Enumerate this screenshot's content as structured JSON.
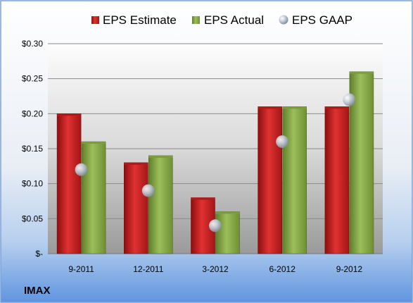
{
  "ticker": "IMAX",
  "colors": {
    "estimate": "#cc1f1f",
    "actual": "#8cb04a",
    "gaap": "#b8c4d0"
  },
  "chart_data": {
    "type": "bar",
    "categories": [
      "9-2011",
      "12-2011",
      "3-2012",
      "6-2012",
      "9-2012"
    ],
    "series": [
      {
        "name": "EPS Estimate",
        "kind": "bar",
        "values": [
          0.2,
          0.13,
          0.08,
          0.21,
          0.21
        ]
      },
      {
        "name": "EPS Actual",
        "kind": "bar",
        "values": [
          0.16,
          0.14,
          0.06,
          0.21,
          0.26
        ]
      },
      {
        "name": "EPS GAAP",
        "kind": "marker",
        "values": [
          0.12,
          0.09,
          0.04,
          0.16,
          0.22
        ]
      }
    ],
    "ylim": [
      0,
      0.3
    ],
    "yticks": [
      {
        "value": 0.0,
        "label": "$-"
      },
      {
        "value": 0.05,
        "label": "$0.05"
      },
      {
        "value": 0.1,
        "label": "$0.10"
      },
      {
        "value": 0.15,
        "label": "$0.15"
      },
      {
        "value": 0.2,
        "label": "$0.20"
      },
      {
        "value": 0.25,
        "label": "$0.25"
      },
      {
        "value": 0.3,
        "label": "$0.30"
      }
    ],
    "grid": true,
    "legend_position": "top"
  }
}
